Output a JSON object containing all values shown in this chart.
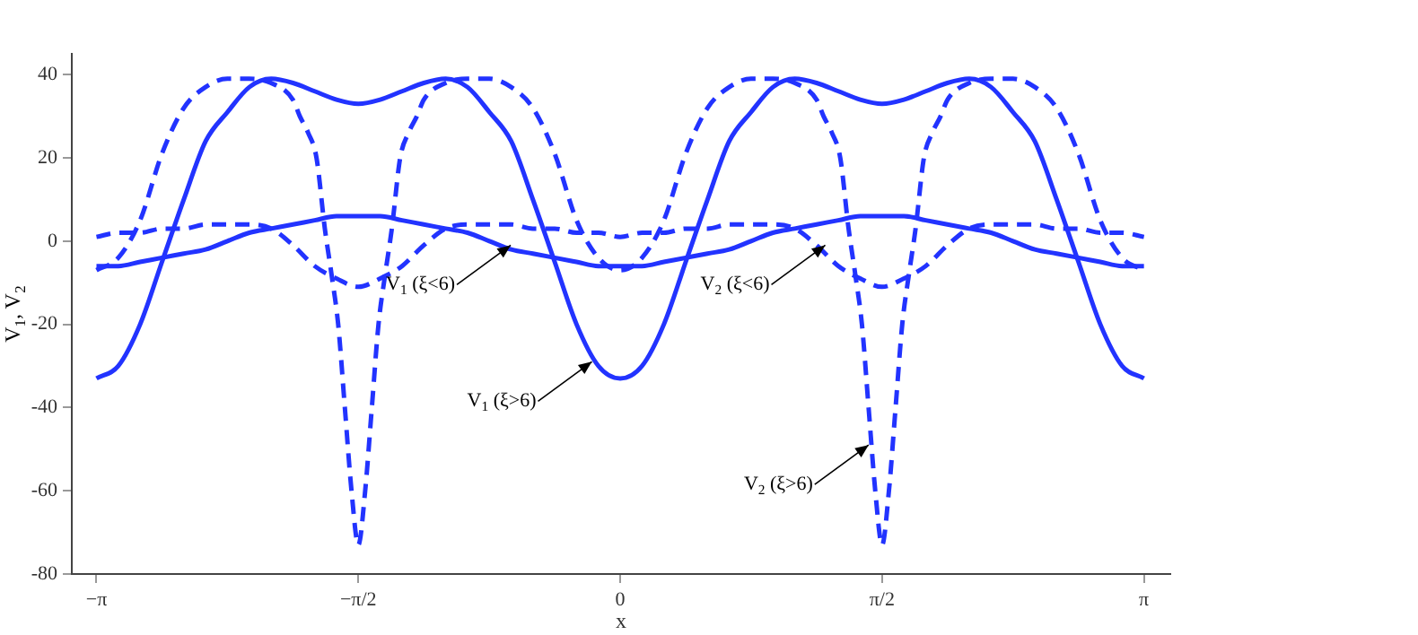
{
  "chart_data": {
    "type": "line",
    "xlabel": "x",
    "ylabel": "V$_{1}$, V$_{2}$",
    "xlim": [
      -3.29,
      3.3
    ],
    "ylim": [
      -80,
      45
    ],
    "xticks": [
      {
        "value": -3.142,
        "label": "−π"
      },
      {
        "value": -1.571,
        "label": "−π/2"
      },
      0,
      {
        "value": 1.571,
        "label": "π/2"
      },
      {
        "value": 3.142,
        "label": "π"
      }
    ],
    "yticks": [
      -80,
      -60,
      -40,
      -20,
      0,
      20,
      40
    ],
    "x": [
      -3.142,
      -3.011,
      -2.88,
      -2.749,
      -2.618,
      -2.487,
      -2.356,
      -2.225,
      -2.094,
      -1.963,
      -1.833,
      -1.702,
      -1.571,
      -1.44,
      -1.309,
      -1.178,
      -1.047,
      -0.916,
      -0.785,
      -0.654,
      -0.524,
      -0.393,
      -0.262,
      -0.131,
      0,
      0.131,
      0.262,
      0.393,
      0.524,
      0.654,
      0.785,
      0.916,
      1.047,
      1.178,
      1.309,
      1.44,
      1.571,
      1.702,
      1.833,
      1.963,
      2.094,
      2.225,
      2.356,
      2.487,
      2.618,
      2.749,
      2.88,
      3.011,
      3.142
    ],
    "series": [
      {
        "color": "#2233ff",
        "line_style": "solid",
        "values": [
          -33,
          -30,
          -20,
          -5,
          10,
          24,
          31,
          37,
          39,
          38,
          36,
          34,
          33,
          34,
          36,
          38,
          39,
          37,
          31,
          24,
          10,
          -5,
          -20,
          -30,
          -33,
          -30,
          -20,
          -5,
          10,
          24,
          31,
          37,
          39,
          38,
          36,
          34,
          33,
          34,
          36,
          38,
          39,
          37,
          31,
          24,
          10,
          -5,
          -20,
          -30,
          -33
        ]
      },
      {
        "color": "#2233ff",
        "line_style": "solid",
        "values": [
          -6,
          -6,
          -5,
          -4,
          -3,
          -2,
          0,
          2,
          3,
          4,
          5,
          6,
          6,
          6,
          5,
          4,
          3,
          2,
          0,
          -2,
          -3,
          -4,
          -5,
          -6,
          -6,
          -6,
          -5,
          -4,
          -3,
          -2,
          0,
          2,
          3,
          4,
          5,
          6,
          6,
          6,
          5,
          4,
          3,
          2,
          0,
          -2,
          -3,
          -4,
          -5,
          -6,
          -6
        ]
      },
      {
        "color": "#2233ff",
        "line_style": "dashed",
        "values": [
          1,
          2,
          2,
          3,
          3,
          4,
          4,
          4,
          3,
          -1,
          -6,
          -9,
          -11,
          -9,
          -6,
          -1,
          3,
          4,
          4,
          4,
          3,
          3,
          2,
          2,
          1,
          2,
          2,
          3,
          3,
          4,
          4,
          4,
          3,
          -1,
          -6,
          -9,
          -11,
          -9,
          -6,
          -1,
          3,
          4,
          4,
          4,
          3,
          3,
          2,
          2,
          1
        ]
      },
      {
        "color": "#2233ff",
        "line_style": "dashed",
        "x": [
          -3.142,
          -3.011,
          -2.88,
          -2.749,
          -2.618,
          -2.488,
          -2.357,
          -2.226,
          -2.095,
          -1.964,
          -1.922,
          -1.872,
          -1.822,
          -1.772,
          -1.732,
          -1.692,
          -1.652,
          -1.612,
          -1.571,
          -1.53,
          -1.49,
          -1.45,
          -1.41,
          -1.37,
          -1.32,
          -1.27,
          -1.22,
          -1.178,
          -1.047,
          -0.916,
          -0.785,
          -0.654,
          -0.524,
          -0.393,
          -0.262,
          -0.131,
          0,
          0.131,
          0.262,
          0.393,
          0.524,
          0.654,
          0.785,
          0.916,
          1.047,
          1.178,
          1.22,
          1.27,
          1.32,
          1.37,
          1.41,
          1.45,
          1.49,
          1.53,
          1.571,
          1.612,
          1.652,
          1.692,
          1.732,
          1.772,
          1.822,
          1.872,
          1.922,
          1.964,
          2.095,
          2.226,
          2.357,
          2.488,
          2.618,
          2.749,
          2.88,
          3.011,
          3.142
        ],
        "values": [
          -7,
          -4,
          5,
          21,
          32,
          37,
          39,
          39,
          38,
          34,
          30,
          26,
          20,
          3,
          -8,
          -20,
          -40,
          -60,
          -73,
          -60,
          -40,
          -20,
          -8,
          3,
          20,
          26,
          30,
          34,
          38,
          39,
          39,
          37,
          32,
          21,
          5,
          -4,
          -7,
          -4,
          5,
          21,
          32,
          37,
          39,
          39,
          38,
          34,
          30,
          26,
          20,
          3,
          -8,
          -20,
          -40,
          -60,
          -73,
          -60,
          -40,
          -20,
          -8,
          3,
          20,
          26,
          30,
          34,
          38,
          39,
          39,
          37,
          32,
          21,
          5,
          -4,
          -7
        ]
      }
    ],
    "annotations": [
      {
        "text": "V$_{1}$ (ξ<6)",
        "x": -0.657,
        "y": -1
      },
      {
        "text": "V$_{2}$ (ξ<6)",
        "x": 1.23,
        "y": -1
      },
      {
        "text": "V$_{1}$ (ξ>6)",
        "x": -0.17,
        "y": -29
      },
      {
        "text": "V$_{2}$ (ξ>6)",
        "x": 1.49,
        "y": -49
      }
    ]
  }
}
